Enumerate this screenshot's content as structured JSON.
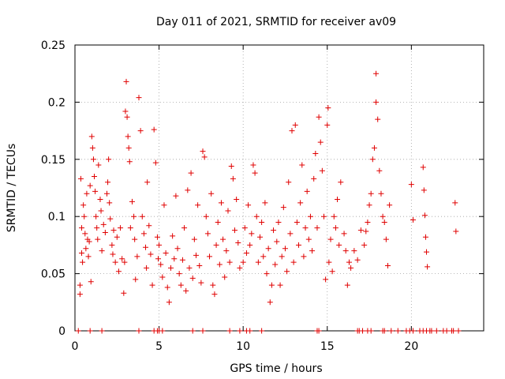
{
  "chart_data": {
    "type": "scatter",
    "title": "Day 011 of 2021, SRMTID for receiver av09",
    "xlabel": "GPS time / hours",
    "ylabel": "SRMTID / TECUs",
    "xlim": [
      0,
      24.3
    ],
    "ylim": [
      0,
      0.25
    ],
    "x_ticks": [
      0,
      5,
      10,
      15,
      20
    ],
    "x_tick_labels": [
      "0",
      "5",
      "10",
      "15",
      "20"
    ],
    "y_ticks": [
      0,
      0.05,
      0.1,
      0.15,
      0.2,
      0.25
    ],
    "y_tick_labels": [
      "0",
      "0.05",
      "0.1",
      "0.15",
      "0.2",
      "0.25"
    ],
    "grid": true,
    "marker": "+",
    "marker_color": "#e00000",
    "series": [
      {
        "name": "SRMTID",
        "points": [
          [
            0.3,
            0.04
          ],
          [
            0.3,
            0.032
          ],
          [
            0.35,
            0.133
          ],
          [
            0.4,
            0.09
          ],
          [
            0.4,
            0.068
          ],
          [
            0.45,
            0.06
          ],
          [
            0.5,
            0.11
          ],
          [
            0.55,
            0.1
          ],
          [
            0.6,
            0.085
          ],
          [
            0.65,
            0.072
          ],
          [
            0.7,
            0.12
          ],
          [
            0.75,
            0.08
          ],
          [
            0.8,
            0.065
          ],
          [
            0.85,
            0.078
          ],
          [
            0.9,
            0.127
          ],
          [
            0.95,
            0.043
          ],
          [
            1.0,
            0.17
          ],
          [
            1.05,
            0.16
          ],
          [
            1.1,
            0.15
          ],
          [
            1.15,
            0.135
          ],
          [
            1.2,
            0.122
          ],
          [
            1.25,
            0.1
          ],
          [
            1.3,
            0.09
          ],
          [
            1.35,
            0.08
          ],
          [
            1.4,
            0.145
          ],
          [
            1.5,
            0.115
          ],
          [
            1.55,
            0.105
          ],
          [
            1.6,
            0.07
          ],
          [
            1.7,
            0.093
          ],
          [
            1.8,
            0.086
          ],
          [
            1.9,
            0.12
          ],
          [
            1.95,
            0.13
          ],
          [
            2.0,
            0.15
          ],
          [
            2.05,
            0.112
          ],
          [
            2.1,
            0.098
          ],
          [
            2.2,
            0.075
          ],
          [
            2.25,
            0.067
          ],
          [
            2.3,
            0.088
          ],
          [
            2.4,
            0.06
          ],
          [
            2.5,
            0.082
          ],
          [
            2.6,
            0.052
          ],
          [
            2.7,
            0.09
          ],
          [
            2.8,
            0.063
          ],
          [
            2.9,
            0.033
          ],
          [
            2.95,
            0.06
          ],
          [
            3.0,
            0.192
          ],
          [
            3.05,
            0.218
          ],
          [
            3.1,
            0.187
          ],
          [
            3.15,
            0.17
          ],
          [
            3.2,
            0.16
          ],
          [
            3.25,
            0.148
          ],
          [
            3.3,
            0.09
          ],
          [
            3.4,
            0.113
          ],
          [
            3.5,
            0.1
          ],
          [
            3.55,
            0.08
          ],
          [
            3.6,
            0.045
          ],
          [
            3.7,
            0.065
          ],
          [
            3.8,
            0.204
          ],
          [
            3.9,
            0.175
          ],
          [
            4.0,
            0.1
          ],
          [
            4.1,
            0.085
          ],
          [
            4.2,
            0.073
          ],
          [
            4.25,
            0.055
          ],
          [
            4.3,
            0.13
          ],
          [
            4.4,
            0.092
          ],
          [
            4.5,
            0.067
          ],
          [
            4.6,
            0.04
          ],
          [
            4.7,
            0.176
          ],
          [
            4.8,
            0.147
          ],
          [
            4.9,
            0.082
          ],
          [
            4.95,
            0.063
          ],
          [
            5.0,
            0.075
          ],
          [
            5.1,
            0.058
          ],
          [
            5.2,
            0.047
          ],
          [
            5.3,
            0.11
          ],
          [
            5.4,
            0.068
          ],
          [
            5.5,
            0.038
          ],
          [
            5.6,
            0.025
          ],
          [
            5.7,
            0.055
          ],
          [
            5.8,
            0.083
          ],
          [
            5.9,
            0.063
          ],
          [
            6.0,
            0.118
          ],
          [
            6.1,
            0.072
          ],
          [
            6.2,
            0.05
          ],
          [
            6.3,
            0.04
          ],
          [
            6.4,
            0.062
          ],
          [
            6.5,
            0.09
          ],
          [
            6.6,
            0.035
          ],
          [
            6.7,
            0.123
          ],
          [
            6.8,
            0.055
          ],
          [
            6.9,
            0.138
          ],
          [
            7.0,
            0.046
          ],
          [
            7.1,
            0.08
          ],
          [
            7.2,
            0.066
          ],
          [
            7.3,
            0.11
          ],
          [
            7.4,
            0.057
          ],
          [
            7.5,
            0.042
          ],
          [
            7.6,
            0.157
          ],
          [
            7.7,
            0.152
          ],
          [
            7.8,
            0.1
          ],
          [
            7.9,
            0.085
          ],
          [
            8.0,
            0.065
          ],
          [
            8.1,
            0.12
          ],
          [
            8.2,
            0.04
          ],
          [
            8.3,
            0.032
          ],
          [
            8.4,
            0.075
          ],
          [
            8.5,
            0.095
          ],
          [
            8.6,
            0.058
          ],
          [
            8.7,
            0.112
          ],
          [
            8.8,
            0.08
          ],
          [
            8.9,
            0.047
          ],
          [
            9.0,
            0.07
          ],
          [
            9.1,
            0.105
          ],
          [
            9.2,
            0.06
          ],
          [
            9.3,
            0.144
          ],
          [
            9.4,
            0.133
          ],
          [
            9.5,
            0.088
          ],
          [
            9.6,
            0.115
          ],
          [
            9.7,
            0.077
          ],
          [
            9.8,
            0.055
          ],
          [
            10.0,
            0.06
          ],
          [
            10.1,
            0.09
          ],
          [
            10.2,
            0.068
          ],
          [
            10.3,
            0.11
          ],
          [
            10.4,
            0.075
          ],
          [
            10.5,
            0.085
          ],
          [
            10.6,
            0.145
          ],
          [
            10.7,
            0.138
          ],
          [
            10.8,
            0.1
          ],
          [
            10.9,
            0.06
          ],
          [
            11.0,
            0.082
          ],
          [
            11.1,
            0.095
          ],
          [
            11.2,
            0.065
          ],
          [
            11.3,
            0.112
          ],
          [
            11.4,
            0.05
          ],
          [
            11.5,
            0.072
          ],
          [
            11.6,
            0.025
          ],
          [
            11.7,
            0.04
          ],
          [
            11.8,
            0.088
          ],
          [
            11.9,
            0.058
          ],
          [
            12.0,
            0.078
          ],
          [
            12.1,
            0.095
          ],
          [
            12.2,
            0.04
          ],
          [
            12.3,
            0.065
          ],
          [
            12.4,
            0.108
          ],
          [
            12.5,
            0.072
          ],
          [
            12.6,
            0.052
          ],
          [
            12.7,
            0.13
          ],
          [
            12.8,
            0.085
          ],
          [
            12.9,
            0.175
          ],
          [
            13.0,
            0.06
          ],
          [
            13.1,
            0.18
          ],
          [
            13.2,
            0.095
          ],
          [
            13.3,
            0.075
          ],
          [
            13.4,
            0.112
          ],
          [
            13.5,
            0.145
          ],
          [
            13.6,
            0.065
          ],
          [
            13.7,
            0.09
          ],
          [
            13.8,
            0.122
          ],
          [
            13.9,
            0.08
          ],
          [
            14.0,
            0.1
          ],
          [
            14.1,
            0.07
          ],
          [
            14.2,
            0.133
          ],
          [
            14.3,
            0.155
          ],
          [
            14.4,
            0.09
          ],
          [
            14.5,
            0.187
          ],
          [
            14.6,
            0.165
          ],
          [
            14.7,
            0.14
          ],
          [
            14.8,
            0.1
          ],
          [
            14.9,
            0.045
          ],
          [
            15.0,
            0.18
          ],
          [
            15.05,
            0.195
          ],
          [
            15.1,
            0.06
          ],
          [
            15.2,
            0.08
          ],
          [
            15.3,
            0.052
          ],
          [
            15.4,
            0.1
          ],
          [
            15.5,
            0.09
          ],
          [
            15.6,
            0.115
          ],
          [
            15.7,
            0.075
          ],
          [
            15.8,
            0.13
          ],
          [
            16.0,
            0.085
          ],
          [
            16.1,
            0.07
          ],
          [
            16.2,
            0.04
          ],
          [
            16.3,
            0.06
          ],
          [
            16.4,
            0.055
          ],
          [
            16.6,
            0.07
          ],
          [
            16.8,
            0.062
          ],
          [
            17.0,
            0.088
          ],
          [
            17.2,
            0.075
          ],
          [
            17.3,
            0.087
          ],
          [
            17.4,
            0.095
          ],
          [
            17.5,
            0.11
          ],
          [
            17.6,
            0.12
          ],
          [
            17.7,
            0.15
          ],
          [
            17.8,
            0.16
          ],
          [
            17.9,
            0.225
          ],
          [
            17.9,
            0.2
          ],
          [
            18.0,
            0.185
          ],
          [
            18.1,
            0.14
          ],
          [
            18.2,
            0.12
          ],
          [
            18.3,
            0.1
          ],
          [
            18.4,
            0.095
          ],
          [
            18.5,
            0.08
          ],
          [
            18.6,
            0.057
          ],
          [
            18.7,
            0.11
          ],
          [
            20.0,
            0.128
          ],
          [
            20.1,
            0.097
          ],
          [
            20.7,
            0.143
          ],
          [
            20.75,
            0.123
          ],
          [
            20.8,
            0.101
          ],
          [
            20.85,
            0.082
          ],
          [
            20.9,
            0.069
          ],
          [
            20.95,
            0.056
          ],
          [
            22.6,
            0.112
          ],
          [
            22.65,
            0.087
          ]
        ]
      }
    ],
    "zero_points_x": [
      0.2,
      0.9,
      1.6,
      3.8,
      4.7,
      4.9,
      5.0,
      5.2,
      7.0,
      7.6,
      9.2,
      9.8,
      10.2,
      10.4,
      11.1,
      14.4,
      14.5,
      16.8,
      16.9,
      17.1,
      17.4,
      17.6,
      18.3,
      18.4,
      18.8,
      19.2,
      19.7,
      19.9,
      20.1,
      20.5,
      20.7,
      20.9,
      21.1,
      21.2,
      21.5,
      21.9,
      22.1,
      22.4,
      22.5,
      22.8
    ]
  }
}
